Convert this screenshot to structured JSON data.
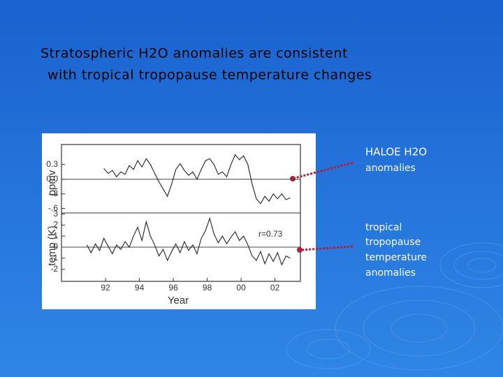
{
  "slide": {
    "title": [
      "Stratospheric H2O anomalies are consistent",
      "with tropical tropopause temperature changes"
    ],
    "labels": [
      "HALOE H2O",
      "anomalies",
      "tropical",
      "tropopause",
      "temperature",
      "anomalies"
    ]
  },
  "chart_data": [
    {
      "type": "line",
      "ylabel": "ppmv",
      "color": "#222222",
      "x": [
        1991.9,
        1992.15,
        1992.4,
        1992.65,
        1992.9,
        1993.15,
        1993.4,
        1993.65,
        1993.9,
        1994.15,
        1994.4,
        1994.65,
        1994.9,
        1995.15,
        1995.4,
        1995.65,
        1995.9,
        1996.15,
        1996.4,
        1996.65,
        1996.9,
        1997.15,
        1997.4,
        1997.65,
        1997.9,
        1998.15,
        1998.4,
        1998.65,
        1998.9,
        1999.15,
        1999.4,
        1999.65,
        1999.9,
        2000.15,
        2000.4,
        2000.65,
        2000.9,
        2001.15,
        2001.4,
        2001.65,
        2001.9,
        2002.15,
        2002.4,
        2002.65,
        2002.9
      ],
      "values": [
        0.22,
        0.12,
        0.18,
        0.05,
        0.15,
        0.1,
        0.28,
        0.2,
        0.38,
        0.25,
        0.42,
        0.3,
        0.12,
        -0.05,
        -0.2,
        -0.35,
        -0.1,
        0.2,
        0.32,
        0.18,
        0.08,
        0.15,
        0.0,
        0.2,
        0.38,
        0.42,
        0.3,
        0.1,
        0.15,
        0.05,
        0.3,
        0.5,
        0.4,
        0.48,
        0.3,
        -0.1,
        -0.4,
        -0.5,
        -0.35,
        -0.45,
        -0.3,
        -0.4,
        -0.3,
        -0.42,
        -0.38
      ],
      "xlim": [
        1989.4,
        2003.5
      ],
      "ylim": [
        -0.69,
        0.71
      ],
      "yticks": [
        {
          "value": 0.3,
          "label": "0.3"
        },
        {
          "value": 0,
          "label": "0.0"
        },
        {
          "value": -0.3,
          "label": "-.3"
        },
        {
          "value": -0.6,
          "label": "-.6"
        }
      ],
      "zero_line": true
    },
    {
      "type": "line",
      "ylabel": "temp (K)",
      "xlabel": "Year",
      "annotation": "r=0.73",
      "color": "#222222",
      "x": [
        1990.9,
        1991.15,
        1991.4,
        1991.65,
        1991.9,
        1992.15,
        1992.4,
        1992.65,
        1992.9,
        1993.15,
        1993.4,
        1993.65,
        1993.9,
        1994.15,
        1994.4,
        1994.65,
        1994.9,
        1995.15,
        1995.4,
        1995.65,
        1995.9,
        1996.15,
        1996.4,
        1996.65,
        1996.9,
        1997.15,
        1997.4,
        1997.65,
        1997.9,
        1998.15,
        1998.4,
        1998.65,
        1998.9,
        1999.15,
        1999.4,
        1999.65,
        1999.9,
        2000.15,
        2000.4,
        2000.65,
        2000.9,
        2001.15,
        2001.4,
        2001.65,
        2001.9,
        2002.15,
        2002.4,
        2002.65,
        2002.9
      ],
      "values": [
        0.2,
        -0.5,
        0.3,
        -0.3,
        0.8,
        0.1,
        -0.6,
        0.2,
        -0.2,
        0.5,
        0.0,
        1.0,
        1.8,
        0.6,
        2.3,
        1.0,
        0.2,
        -0.8,
        -0.2,
        -1.2,
        -0.4,
        0.3,
        -0.5,
        0.5,
        -0.3,
        0.2,
        -0.6,
        0.8,
        1.5,
        2.6,
        1.2,
        0.4,
        1.0,
        0.3,
        0.9,
        1.4,
        0.6,
        1.0,
        0.2,
        -0.8,
        -1.2,
        -0.4,
        -1.5,
        -0.6,
        -1.3,
        -0.5,
        -1.6,
        -0.8,
        -1.0
      ],
      "xlim": [
        1989.4,
        2003.5
      ],
      "ylim": [
        -3.1,
        3.1
      ],
      "yticks": [
        3,
        2,
        1,
        0,
        -1,
        -2
      ],
      "xticks": [
        {
          "value": 1992,
          "label": "92"
        },
        {
          "value": 1994,
          "label": "94"
        },
        {
          "value": 1996,
          "label": "96"
        },
        {
          "value": 1998,
          "label": "98"
        },
        {
          "value": 2000,
          "label": "00"
        },
        {
          "value": 2002,
          "label": "02"
        }
      ],
      "zero_line": true
    }
  ]
}
